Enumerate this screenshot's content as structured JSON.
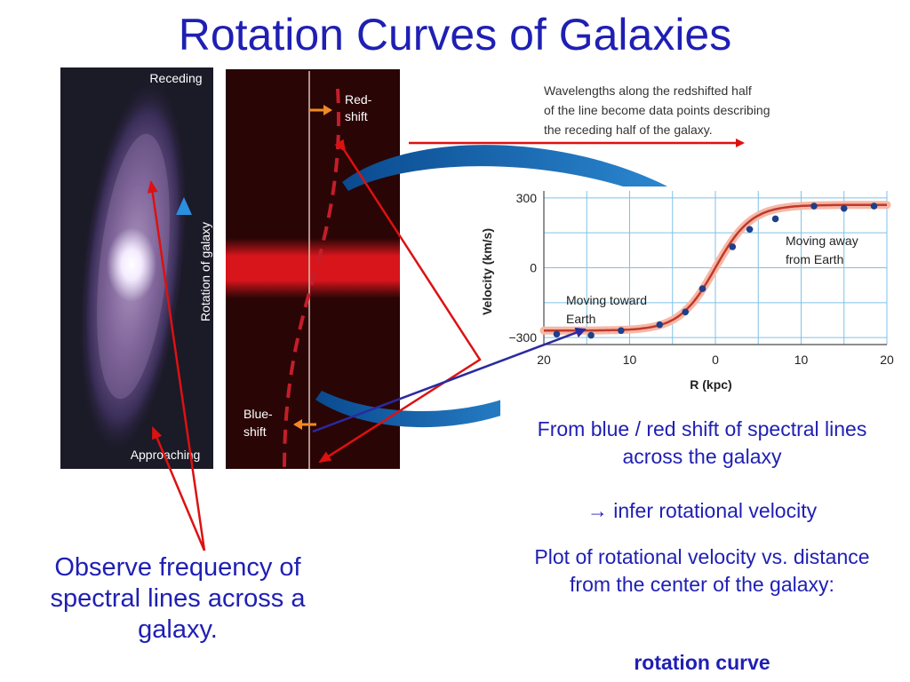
{
  "slide": {
    "title": "Rotation Curves of Galaxies",
    "observe_text": "Observe frequency of spectral lines across a galaxy.",
    "shift_text": "From blue / red shift of spectral lines across the galaxy",
    "infer_text": "→ infer rotational velocity",
    "plot_text": "Plot of rotational velocity vs. distance from the center of the galaxy:",
    "rotation_curve_label": "rotation curve"
  },
  "figure": {
    "galaxy_labels": {
      "receding": "Receding",
      "approaching": "Approaching",
      "rotation": "Rotation of galaxy"
    },
    "spectrum_labels": {
      "red_shift_line1": "Red-",
      "red_shift_line2": "shift",
      "blue_shift_line1": "Blue-",
      "blue_shift_line2": "shift"
    },
    "caption_lines": [
      "Wavelengths along the redshifted half",
      "of the line become data points describing",
      "the receding half of the galaxy."
    ],
    "annotations": {
      "away_line1": "Moving away",
      "away_line2": "from Earth",
      "toward_line1": "Moving toward",
      "toward_line2": "Earth"
    },
    "colors": {
      "title": "#1f1fb4",
      "annotation_arrow": "#dd1111",
      "connector_arrow": "#2a2aa0",
      "curve": "#c0392b",
      "point": "#1e3f8a"
    }
  },
  "chart_data": {
    "type": "line",
    "xlabel": "R (kpc)",
    "ylabel": "Velocity (km/s)",
    "x_ticks": [
      20,
      10,
      0,
      10,
      20
    ],
    "x_tick_values": [
      -20,
      -10,
      0,
      10,
      20
    ],
    "y_ticks": [
      "300",
      "0",
      "−300"
    ],
    "y_tick_values": [
      300,
      0,
      -300
    ],
    "xlim": [
      -20,
      20
    ],
    "ylim": [
      -330,
      330
    ],
    "grid": true,
    "series": [
      {
        "x": [
          -18.5,
          -14.5,
          -11,
          -6.5,
          -3.5,
          -1.5,
          2,
          4,
          7,
          11.5,
          15,
          18.5
        ],
        "y": [
          -285,
          -290,
          -270,
          -245,
          -190,
          -90,
          90,
          165,
          210,
          265,
          255,
          265
        ]
      }
    ]
  }
}
